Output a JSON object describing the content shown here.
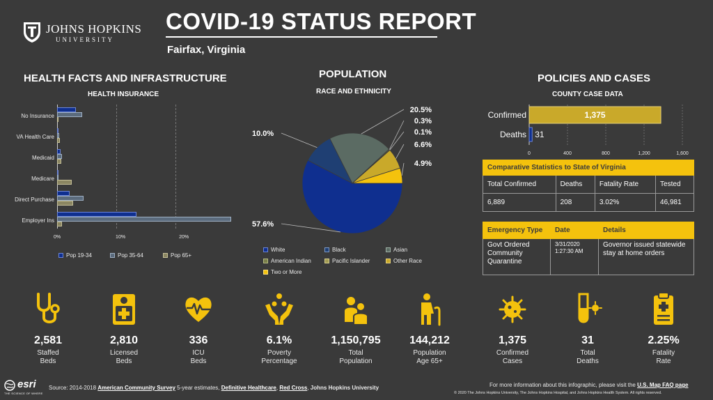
{
  "logo": {
    "name": "JOHNS HOPKINS",
    "sub": "UNIVERSITY"
  },
  "header": {
    "title": "COVID-19 STATUS REPORT",
    "location": "Fairfax, Virginia"
  },
  "health": {
    "heading": "HEALTH FACTS AND INFRASTRUCTURE",
    "subheading": "HEALTH INSURANCE",
    "legend": [
      "Pop 19-34",
      "Pop 35-64",
      "Pop 65+"
    ]
  },
  "population": {
    "heading": "POPULATION",
    "subheading": "RACE AND ETHNICITY",
    "legend": [
      "White",
      "Black",
      "Asian",
      "American Indian",
      "Pacific Islander",
      "Other Race",
      "Two or More"
    ]
  },
  "policies": {
    "heading": "POLICIES AND CASES",
    "subheading": "COUNTY CASE DATA",
    "comparative": {
      "title": "Comparative Statistics to State of Virginia",
      "headers": [
        "Total Confirmed",
        "Deaths",
        "Fatality Rate",
        "Tested"
      ],
      "values": [
        "6,889",
        "208",
        "3.02%",
        "46,981"
      ]
    },
    "emergency": {
      "headers": [
        "Emergency Type",
        "Date",
        "Details"
      ],
      "type": "Govt Ordered Community Quarantine",
      "date": "3/31/2020",
      "time": "1:27:30 AM",
      "details": "Governor issued statewide stay at home orders"
    }
  },
  "stats": [
    {
      "icon": "stethoscope-icon",
      "value": "2,581",
      "label1": "Staffed",
      "label2": "Beds"
    },
    {
      "icon": "hospital-bed-icon",
      "value": "2,810",
      "label1": "Licensed",
      "label2": "Beds"
    },
    {
      "icon": "heart-pulse-icon",
      "value": "336",
      "label1": "ICU",
      "label2": "Beds"
    },
    {
      "icon": "hands-people-icon",
      "value": "6.1%",
      "label1": "Poverty",
      "label2": "Percentage"
    },
    {
      "icon": "population-icon",
      "value": "1,150,795",
      "label1": "Total",
      "label2": "Population"
    },
    {
      "icon": "elderly-person-icon",
      "value": "144,212",
      "label1": "Population",
      "label2": "Age 65+"
    },
    {
      "icon": "virus-icon",
      "value": "1,375",
      "label1": "Confirmed",
      "label2": "Cases"
    },
    {
      "icon": "test-tube-icon",
      "value": "31",
      "label1": "Total",
      "label2": "Deaths"
    },
    {
      "icon": "clipboard-icon",
      "value": "2.25%",
      "label1": "Fatality",
      "label2": "Rate"
    }
  ],
  "footer": {
    "esri": "esri",
    "esri_tag": "THE SCIENCE OF WHERE",
    "source_prefix": "Source: 2014-2018",
    "acs": "American Community Survey",
    "acs_suffix": "5-year estimates,",
    "dh": "Definitive Healthcare",
    "rc": "Red Cross",
    "jhu": "Johns Hopkins University",
    "more_info": "For more information about this infographic, please visit the",
    "faq": "U.S. Map FAQ page",
    "copyright": "© 2020 The Johns Hopkins University, The Johns Hopkins Hospital, and Johns Hopkins Health System. All rights reserved."
  },
  "colors": {
    "background": "#3a3a3a",
    "accent": "#f4c20d",
    "navy": "#0f2f8f",
    "slate": "#5b6b7d",
    "olive": "#8b8662"
  },
  "chart_data": [
    {
      "type": "bar",
      "orientation": "horizontal",
      "subtitle": "HEALTH INSURANCE",
      "categories": [
        "No Insurance",
        "VA Health Care",
        "Medicaid",
        "Medicare",
        "Direct Purchase",
        "Employer Ins"
      ],
      "series": [
        {
          "name": "Pop 19-34",
          "color": "#0f2f8f",
          "values": [
            3.0,
            0.1,
            0.5,
            0.1,
            2.0,
            12.5
          ]
        },
        {
          "name": "Pop 35-64",
          "color": "#5b6b7d",
          "values": [
            4.0,
            0.3,
            0.8,
            0.2,
            4.2,
            27.5
          ]
        },
        {
          "name": "Pop 65+",
          "color": "#8b8662",
          "values": [
            0.2,
            0.4,
            0.7,
            2.3,
            2.5,
            0.8
          ]
        }
      ],
      "x_ticks": [
        "0%",
        "10%",
        "20%"
      ],
      "xlim": [
        0,
        28
      ],
      "legend": "bottom"
    },
    {
      "type": "pie",
      "subtitle": "RACE AND ETHNICITY",
      "slices": [
        {
          "label": "White",
          "value": 57.6,
          "text": "57.6%",
          "color": "#0f2f8f"
        },
        {
          "label": "Black",
          "value": 10.0,
          "text": "10.0%",
          "color": "#1f3f73"
        },
        {
          "label": "Asian",
          "value": 20.5,
          "text": "20.5%",
          "color": "#5b6b63"
        },
        {
          "label": "American Indian",
          "value": 0.3,
          "text": "0.3%",
          "color": "#7a7f4a"
        },
        {
          "label": "Pacific Islander",
          "value": 0.1,
          "text": "0.1%",
          "color": "#a39c55"
        },
        {
          "label": "Other Race",
          "value": 6.6,
          "text": "6.6%",
          "color": "#c9a92a"
        },
        {
          "label": "Two or More",
          "value": 4.9,
          "text": "4.9%",
          "color": "#f4c20d"
        }
      ]
    },
    {
      "type": "bar",
      "orientation": "horizontal",
      "subtitle": "COUNTY CASE DATA",
      "categories": [
        "Confirmed",
        "Deaths"
      ],
      "values": [
        1375,
        31
      ],
      "value_labels": [
        "1,375",
        "31"
      ],
      "x_ticks": [
        "0",
        "400",
        "800",
        "1,200",
        "1,600"
      ],
      "xlim": [
        0,
        1600
      ],
      "color": "#c9a92a"
    }
  ]
}
